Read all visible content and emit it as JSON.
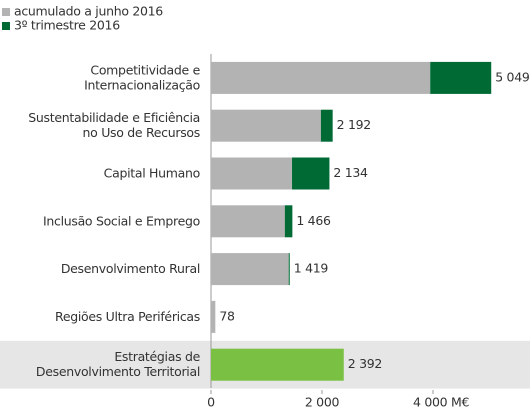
{
  "chart_data": {
    "type": "stacked-barh",
    "categories": [
      [
        "Competitividade e",
        "Internacionalização"
      ],
      [
        "Sustentabilidade e Eficiência",
        "no Uso de Recursos"
      ],
      [
        "Capital Humano"
      ],
      [
        "Inclusão Social e Emprego"
      ],
      [
        "Desenvolvimento Rural"
      ],
      [
        "Regiões Ultra Periféricas"
      ],
      [
        "Estratégias de",
        "Desenvolvimento Territorial"
      ]
    ],
    "series": [
      {
        "name": "acumulado a junho 2016",
        "color": "#b3b3b3",
        "values": [
          3950,
          1980,
          1460,
          1330,
          1400,
          78,
          2392
        ]
      },
      {
        "name": "3º trimestre 2016",
        "color": "#006a35",
        "values": [
          1099,
          212,
          674,
          136,
          19,
          0,
          0
        ]
      }
    ],
    "totals": [
      5049,
      2192,
      2134,
      1466,
      1419,
      78,
      2392
    ],
    "total_labels": [
      "5 049",
      "2 192",
      "2 134",
      "1 466",
      "1 419",
      "78",
      "2 392"
    ],
    "highlight": {
      "index": 6,
      "color": "#7ac143",
      "background": "#e6e6e6"
    },
    "xlim": [
      0,
      5500
    ],
    "xticks": [
      0,
      {
        "value": 2000,
        "label": "2 000"
      },
      {
        "value": 4000,
        "label": "4 000 M€"
      }
    ]
  }
}
